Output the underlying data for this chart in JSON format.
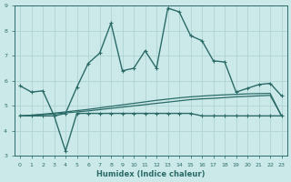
{
  "xlabel": "Humidex (Indice chaleur)",
  "background_color": "#cce9e9",
  "grid_color": "#afd4d4",
  "line_color": "#2a6b68",
  "xlim": [
    -0.5,
    23.5
  ],
  "ylim": [
    3,
    9
  ],
  "xticks": [
    0,
    1,
    2,
    3,
    4,
    5,
    6,
    7,
    8,
    9,
    10,
    11,
    12,
    13,
    14,
    15,
    16,
    17,
    18,
    19,
    20,
    21,
    22,
    23
  ],
  "yticks": [
    3,
    4,
    5,
    6,
    7,
    8,
    9
  ],
  "series": [
    {
      "x": [
        0,
        1,
        2,
        3,
        4,
        5,
        6,
        7,
        8,
        9,
        10,
        11,
        12,
        13,
        14,
        15,
        16,
        17,
        18,
        19,
        20,
        21,
        22,
        23
      ],
      "y": [
        5.8,
        5.55,
        5.6,
        4.6,
        4.7,
        5.75,
        6.7,
        7.1,
        8.3,
        6.4,
        6.5,
        7.2,
        6.5,
        8.9,
        8.75,
        7.8,
        7.6,
        6.8,
        6.75,
        5.55,
        5.7,
        5.85,
        5.9,
        5.4
      ],
      "marker": "P",
      "markersize": 2.5,
      "linewidth": 1.0,
      "with_marker": true
    },
    {
      "x": [
        0,
        1,
        2,
        3,
        4,
        5,
        6,
        7,
        8,
        9,
        10,
        11,
        12,
        13,
        14,
        15,
        16,
        17,
        18,
        19,
        20,
        21,
        22,
        23
      ],
      "y": [
        4.6,
        4.6,
        4.6,
        4.6,
        3.2,
        4.7,
        4.7,
        4.7,
        4.7,
        4.7,
        4.7,
        4.7,
        4.7,
        4.7,
        4.7,
        4.7,
        4.6,
        4.6,
        4.6,
        4.6,
        4.6,
        4.6,
        4.6,
        4.6
      ],
      "marker": "P",
      "markersize": 2.5,
      "linewidth": 1.0,
      "with_marker": true
    },
    {
      "x": [
        0,
        1,
        2,
        3,
        4,
        5,
        6,
        7,
        8,
        9,
        10,
        11,
        12,
        13,
        14,
        15,
        16,
        17,
        18,
        19,
        20,
        21,
        22,
        23
      ],
      "y": [
        4.6,
        4.62,
        4.65,
        4.68,
        4.72,
        4.76,
        4.8,
        4.85,
        4.9,
        4.95,
        5.0,
        5.05,
        5.1,
        5.15,
        5.2,
        5.25,
        5.28,
        5.3,
        5.33,
        5.36,
        5.38,
        5.4,
        5.42,
        4.6
      ],
      "marker": null,
      "markersize": 0,
      "linewidth": 0.9,
      "with_marker": false
    },
    {
      "x": [
        0,
        1,
        2,
        3,
        4,
        5,
        6,
        7,
        8,
        9,
        10,
        11,
        12,
        13,
        14,
        15,
        16,
        17,
        18,
        19,
        20,
        21,
        22,
        23
      ],
      "y": [
        4.6,
        4.63,
        4.67,
        4.71,
        4.76,
        4.81,
        4.86,
        4.92,
        4.98,
        5.04,
        5.1,
        5.16,
        5.22,
        5.27,
        5.32,
        5.36,
        5.39,
        5.42,
        5.44,
        5.46,
        5.48,
        5.49,
        5.5,
        4.6
      ],
      "marker": null,
      "markersize": 0,
      "linewidth": 0.9,
      "with_marker": false
    }
  ]
}
